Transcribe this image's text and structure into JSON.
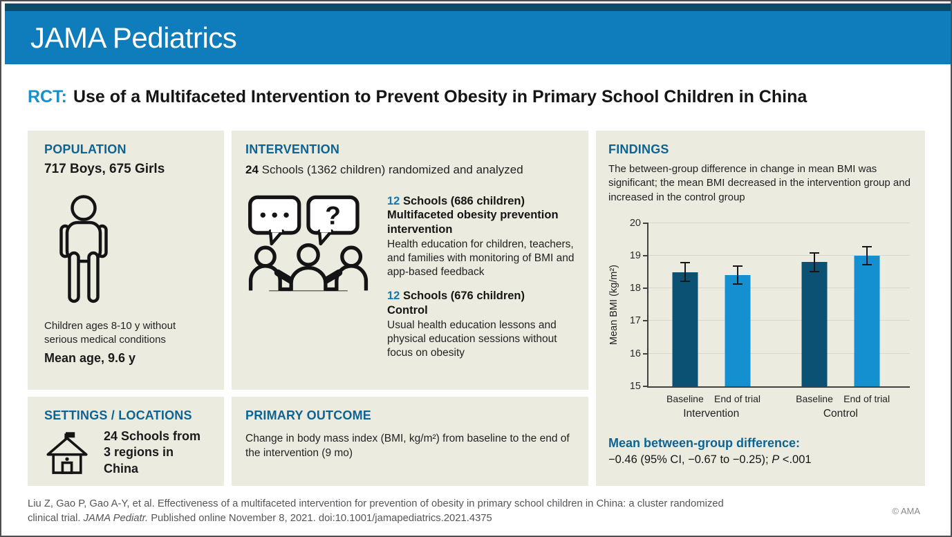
{
  "header": {
    "brand": "JAMA Pediatrics"
  },
  "title": {
    "tag": "RCT:",
    "text": "Use of a Multifaceted Intervention to Prevent Obesity in Primary School Children in China"
  },
  "icons": {
    "population": "child-figure",
    "intervention": "discussion-group",
    "settings": "school-building",
    "question_mark": "?"
  },
  "population": {
    "heading": "POPULATION",
    "counts": "717 Boys, 675 Girls",
    "description": "Children ages 8-10 y without serious medical conditions",
    "mean_age": "Mean age, 9.6 y"
  },
  "intervention": {
    "heading": "INTERVENTION",
    "intro_number": "24",
    "intro_rest": " Schools (1362 children) randomized and analyzed",
    "groups": [
      {
        "number": "12",
        "label": " Schools (686 children)",
        "name": "Multifaceted obesity prevention intervention",
        "description": "Health education for children, teachers, and families with monitoring of BMI and app-based feedback"
      },
      {
        "number": "12",
        "label": " Schools (676 children)",
        "name": "Control",
        "description": "Usual health education lessons and physical education sessions without focus on obesity"
      }
    ]
  },
  "settings": {
    "heading": "SETTINGS / LOCATIONS",
    "line1": "24 Schools from",
    "line2": "3 regions in China"
  },
  "primary_outcome": {
    "heading": "PRIMARY OUTCOME",
    "text": "Change in body mass index (BMI, kg/m²) from baseline to the end of the intervention (9 mo)"
  },
  "findings": {
    "heading": "FINDINGS",
    "summary": "The between-group difference in change in mean BMI was significant; the mean BMI decreased in the intervention group and increased in the control group",
    "difference_heading": "Mean between-group difference:",
    "difference_value": "−0.46 (95% CI, −0.67 to −0.25); ",
    "p_italic": "P",
    "p_rest": " <.001"
  },
  "chart_data": {
    "type": "bar",
    "title": "",
    "xlabel": "",
    "ylabel": "Mean BMI (kg/m²)",
    "ylim": [
      15,
      20
    ],
    "yticks": [
      15,
      16,
      17,
      18,
      19,
      20
    ],
    "grid": true,
    "legend": "none",
    "groups": [
      "Intervention",
      "Control"
    ],
    "categories": [
      "Baseline",
      "End of trial",
      "Baseline",
      "End of trial"
    ],
    "series": [
      {
        "group": "Intervention",
        "label": "Baseline",
        "value": 18.5,
        "ci": [
          18.2,
          18.8
        ],
        "color": "#0B5174"
      },
      {
        "group": "Intervention",
        "label": "End of trial",
        "value": 18.4,
        "ci": [
          18.1,
          18.7
        ],
        "color": "#148FD0"
      },
      {
        "group": "Control",
        "label": "Baseline",
        "value": 18.8,
        "ci": [
          18.5,
          19.1
        ],
        "color": "#0B5174"
      },
      {
        "group": "Control",
        "label": "End of trial",
        "value": 19.0,
        "ci": [
          18.7,
          19.3
        ],
        "color": "#148FD0"
      }
    ]
  },
  "footer": {
    "citation_before_journal": "Liu Z, Gao P, Gao A-Y, et al. Effectiveness of a multifaceted intervention for prevention of obesity in primary school children in China: a cluster randomized clinical trial. ",
    "citation_journal": "JAMA Pediatr.",
    "citation_after_journal": " Published online November 8, 2021. doi:10.1001/jamapediatrics.2021.4375",
    "copyright": "© AMA"
  },
  "colors": {
    "header_blue": "#0F7DBB",
    "header_navy": "#0C4C69",
    "panel_bg": "#ECEBE0",
    "heading_teal": "#0D6493",
    "accent_blue": "#1690CE",
    "bar_dark": "#0B5174",
    "bar_light": "#148FD0"
  }
}
